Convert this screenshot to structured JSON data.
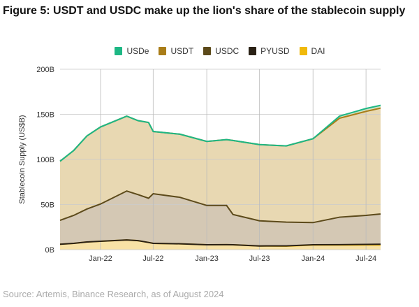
{
  "title": "Figure 5: USDT and USDC make up the lion's share of the stablecoin supply",
  "source": "Source: Artemis, Binance Research, as of August 2024",
  "chart_data": {
    "type": "area",
    "stacked": true,
    "title": "Figure 5: USDT and USDC make up the lion's share of the stablecoin supply",
    "xlabel": "",
    "ylabel": "Stablecoin Supply (US$B)",
    "ylim": [
      0,
      200
    ],
    "yticks": [
      "0B",
      "50B",
      "100B",
      "150B",
      "200B"
    ],
    "ytick_values": [
      0,
      50,
      100,
      150,
      200
    ],
    "xticks": [
      "Jan-22",
      "Jul-22",
      "Jan-23",
      "Jul-23",
      "Jan-24",
      "Jul-24"
    ],
    "xtick_dates": [
      "2022-01-01",
      "2022-07-01",
      "2023-01-01",
      "2023-07-01",
      "2024-01-01",
      "2024-07-01"
    ],
    "xlim": [
      "2021-08-15",
      "2024-08-20"
    ],
    "grid": true,
    "legend_position": "top",
    "x": [
      "2021-08-15",
      "2021-10-01",
      "2021-11-15",
      "2022-01-01",
      "2022-04-01",
      "2022-05-10",
      "2022-06-15",
      "2022-07-01",
      "2022-10-01",
      "2023-01-01",
      "2023-03-10",
      "2023-04-01",
      "2023-07-01",
      "2023-10-01",
      "2024-01-01",
      "2024-04-01",
      "2024-07-01",
      "2024-08-20"
    ],
    "series": [
      {
        "name": "DAI",
        "color": "#f0b90b",
        "fill": "#f8e2a6",
        "values": [
          6,
          7,
          8.5,
          9.3,
          10.8,
          10,
          8,
          7,
          6.5,
          5.4,
          5.5,
          5.4,
          4.1,
          3.9,
          5.1,
          5.1,
          5.2,
          5.1
        ]
      },
      {
        "name": "PYUSD",
        "color": "#2a2115",
        "fill": "#2a2115",
        "values": [
          0,
          0,
          0,
          0,
          0,
          0,
          0,
          0,
          0,
          0,
          0,
          0,
          0,
          0.3,
          0.3,
          0.4,
          0.6,
          0.9
        ]
      },
      {
        "name": "USDC",
        "color": "#5c4a1a",
        "fill": "#d4c8b4",
        "values": [
          26.5,
          31,
          36.5,
          41.3,
          54.2,
          51,
          49,
          55,
          51.5,
          43.6,
          43.5,
          33.6,
          27.9,
          26.3,
          24.6,
          30.5,
          32.2,
          33.5
        ]
      },
      {
        "name": "USDT",
        "color": "#a97d18",
        "fill": "#e8d8b2",
        "values": [
          65.5,
          72,
          81,
          85.4,
          83,
          82,
          84,
          69,
          70,
          71,
          73,
          82,
          84.5,
          84.5,
          93,
          109.7,
          115.3,
          117.4
        ]
      },
      {
        "name": "USDe",
        "color": "#1db784",
        "fill": "#cfe3c4",
        "values": [
          0,
          0,
          0,
          0,
          0,
          0,
          0,
          0,
          0,
          0,
          0,
          0,
          0,
          0,
          0,
          2.3,
          3.2,
          3.1
        ]
      }
    ],
    "legend_order": [
      "USDe",
      "USDT",
      "USDC",
      "PYUSD",
      "DAI"
    ]
  }
}
